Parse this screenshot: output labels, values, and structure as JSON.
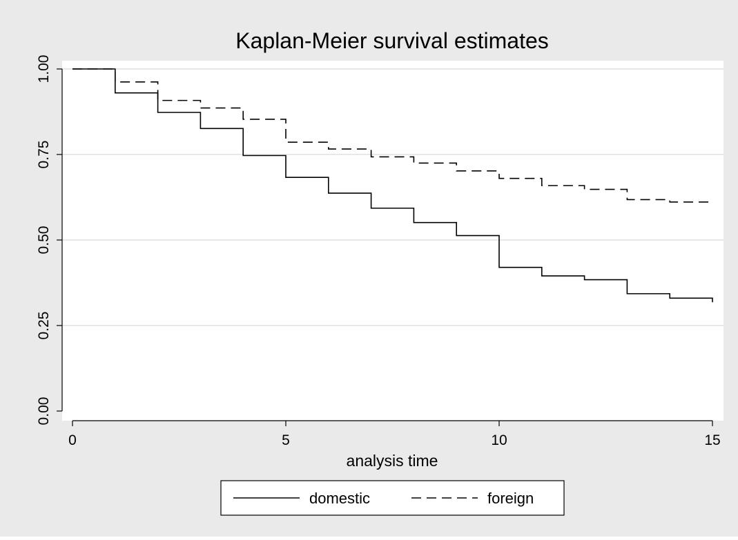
{
  "colors": {
    "outer_background": "#eaeaea",
    "plot_background": "#ffffff",
    "gridline": "#e0e0e0",
    "line": "#000000"
  },
  "chart_data": {
    "type": "line",
    "step": true,
    "title": "Kaplan-Meier survival estimates",
    "xlabel": "analysis time",
    "ylabel": "",
    "xlim": [
      0,
      15
    ],
    "ylim": [
      0,
      1
    ],
    "xticks": [
      0,
      5,
      10,
      15
    ],
    "xtick_labels": [
      "0",
      "5",
      "10",
      "15"
    ],
    "yticks": [
      0,
      0.25,
      0.5,
      0.75,
      1
    ],
    "ytick_labels": [
      "0.00",
      "0.25",
      "0.50",
      "0.75",
      "1.00"
    ],
    "grid": true,
    "legend_position": "bottom",
    "series": [
      {
        "name": "domestic",
        "dash": "solid",
        "x": [
          0,
          1,
          2,
          3,
          4,
          5,
          6,
          7,
          8,
          9,
          10,
          11,
          12,
          13,
          14,
          15
        ],
        "values": [
          1.0,
          0.93,
          0.873,
          0.826,
          0.747,
          0.683,
          0.637,
          0.593,
          0.551,
          0.513,
          0.42,
          0.395,
          0.384,
          0.343,
          0.33,
          0.318
        ]
      },
      {
        "name": "foreign",
        "dash": "dashed",
        "x": [
          0,
          1,
          2,
          3,
          4,
          5,
          6,
          7,
          8,
          9,
          10,
          11,
          12,
          13,
          14,
          15
        ],
        "values": [
          1.0,
          0.962,
          0.908,
          0.886,
          0.853,
          0.786,
          0.766,
          0.743,
          0.725,
          0.702,
          0.68,
          0.659,
          0.648,
          0.618,
          0.611,
          0.607
        ]
      }
    ]
  }
}
